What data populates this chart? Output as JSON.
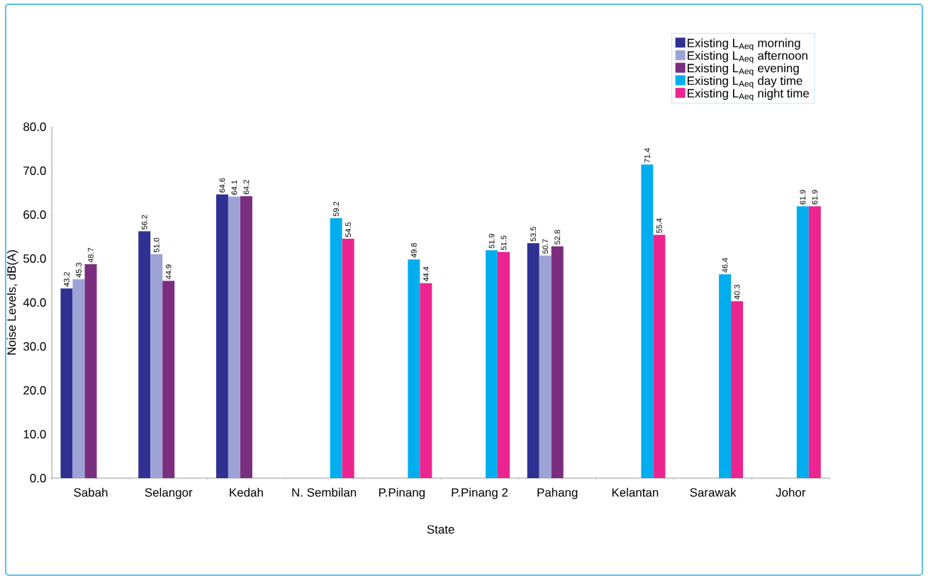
{
  "chart_data": {
    "type": "bar",
    "xlabel": "State",
    "ylabel": "Noise Levels, dB(A)",
    "categories": [
      "Sabah",
      "Selangor",
      "Kedah",
      "N. Sembilan",
      "P.Pinang",
      "P.Pinang 2",
      "Pahang",
      "Kelantan",
      "Sarawak",
      "Johor"
    ],
    "ylim": [
      0,
      80
    ],
    "yticks": [
      {
        "value": 0,
        "label": "0.0"
      },
      {
        "value": 10,
        "label": "10.0"
      },
      {
        "value": 20,
        "label": "20.0"
      },
      {
        "value": 30,
        "label": "30.0"
      },
      {
        "value": 40,
        "label": "40.0"
      },
      {
        "value": 50,
        "label": "50.0"
      },
      {
        "value": 60,
        "label": "60.0"
      },
      {
        "value": 70,
        "label": "70.0"
      },
      {
        "value": 80,
        "label": "80.0"
      }
    ],
    "legend": "top right",
    "grid": false,
    "series": [
      {
        "name": "Existing L$_{Aeq}$ morning",
        "color": "#2e3192",
        "values": [
          43.2,
          56.2,
          64.6,
          null,
          null,
          null,
          53.5,
          null,
          null,
          null
        ],
        "value_labels": [
          "43.2",
          "56.2",
          "64.6",
          null,
          null,
          null,
          "53.5",
          null,
          null,
          null
        ]
      },
      {
        "name": "Existing L$_{Aeq}$ afternoon",
        "color": "#9da3d5",
        "values": [
          45.3,
          51.0,
          64.1,
          null,
          null,
          null,
          50.7,
          null,
          null,
          null
        ],
        "value_labels": [
          "45.3",
          "51.0",
          "64.1",
          null,
          null,
          null,
          "50.7",
          null,
          null,
          null
        ]
      },
      {
        "name": "Existing L$_{Aeq}$ evening",
        "color": "#7b2d80",
        "values": [
          48.7,
          44.9,
          64.2,
          null,
          null,
          null,
          52.8,
          null,
          null,
          null
        ],
        "value_labels": [
          "48.7",
          "44.9",
          "64.2",
          null,
          null,
          null,
          "52.8",
          null,
          null,
          null
        ]
      },
      {
        "name": "Existing L$_{Aeq}$ day time",
        "color": "#00aeef",
        "values": [
          null,
          null,
          null,
          59.2,
          49.8,
          51.9,
          null,
          71.4,
          46.4,
          61.9
        ],
        "value_labels": [
          null,
          null,
          null,
          "59.2",
          "49.8",
          "51.9",
          null,
          "71.4",
          "46.4",
          "61.9"
        ]
      },
      {
        "name": "Existing L$_{Aeq}$ night time",
        "color": "#ec2490",
        "values": [
          null,
          null,
          null,
          54.5,
          44.4,
          51.5,
          null,
          55.4,
          40.3,
          61.9
        ],
        "value_labels": [
          null,
          null,
          null,
          "54.5",
          "44.4",
          "51.5",
          null,
          "55.4",
          "40.3",
          "61.9"
        ]
      }
    ]
  }
}
